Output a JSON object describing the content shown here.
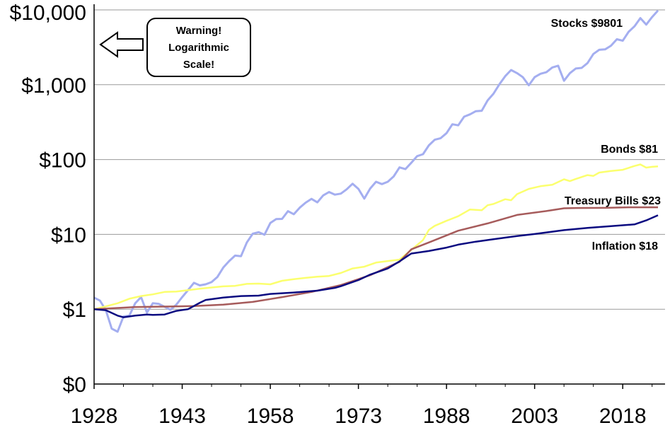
{
  "chart_data": {
    "type": "line",
    "title": "",
    "xlabel": "",
    "ylabel": "",
    "yscale": "log",
    "xlim": [
      1928,
      2024
    ],
    "ylim": [
      0.1,
      10000
    ],
    "grid": "horizontal",
    "legend": "none",
    "x_tick_labels": [
      "1928",
      "1943",
      "1958",
      "1973",
      "1988",
      "2003",
      "2018"
    ],
    "x_tick_values": [
      1928,
      1943,
      1958,
      1973,
      1988,
      2003,
      2018
    ],
    "y_tick_labels": [
      "$0",
      "$1",
      "$10",
      "$100",
      "$1,000",
      "$10,000"
    ],
    "y_tick_values": [
      0.1,
      1,
      10,
      100,
      1000,
      10000
    ],
    "colors": {
      "stocks": "#a4aef0",
      "bonds": "#fbff6e",
      "bills": "#a65b5b",
      "inflation": "#0a0a80",
      "grid": "#9a9a9a",
      "axis": "#000000"
    },
    "annotation": {
      "lines": [
        "Warning!",
        "Logarithmic",
        "Scale!"
      ]
    },
    "series": [
      {
        "key": "stocks",
        "label": "Stocks $9801",
        "points": [
          [
            1928,
            1.43
          ],
          [
            1929,
            1.3
          ],
          [
            1930,
            0.97
          ],
          [
            1931,
            0.55
          ],
          [
            1932,
            0.5
          ],
          [
            1933,
            0.8
          ],
          [
            1934,
            0.82
          ],
          [
            1935,
            1.2
          ],
          [
            1936,
            1.45
          ],
          [
            1937,
            0.9
          ],
          [
            1938,
            1.2
          ],
          [
            1939,
            1.18
          ],
          [
            1940,
            1.08
          ],
          [
            1941,
            0.98
          ],
          [
            1942,
            1.15
          ],
          [
            1943,
            1.45
          ],
          [
            1944,
            1.8
          ],
          [
            1945,
            2.25
          ],
          [
            1946,
            2.08
          ],
          [
            1947,
            2.15
          ],
          [
            1948,
            2.3
          ],
          [
            1949,
            2.7
          ],
          [
            1950,
            3.6
          ],
          [
            1951,
            4.4
          ],
          [
            1952,
            5.2
          ],
          [
            1953,
            5.1
          ],
          [
            1954,
            7.8
          ],
          [
            1955,
            10.2
          ],
          [
            1956,
            10.7
          ],
          [
            1957,
            9.9
          ],
          [
            1958,
            14.2
          ],
          [
            1959,
            16.0
          ],
          [
            1960,
            16.1
          ],
          [
            1961,
            20.4
          ],
          [
            1962,
            18.6
          ],
          [
            1963,
            22.7
          ],
          [
            1964,
            26.5
          ],
          [
            1965,
            29.8
          ],
          [
            1966,
            26.8
          ],
          [
            1967,
            33.2
          ],
          [
            1968,
            36.8
          ],
          [
            1969,
            34.0
          ],
          [
            1970,
            35.0
          ],
          [
            1971,
            40.0
          ],
          [
            1972,
            47.5
          ],
          [
            1973,
            40.5
          ],
          [
            1974,
            30.0
          ],
          [
            1975,
            41.0
          ],
          [
            1976,
            50.5
          ],
          [
            1977,
            47.0
          ],
          [
            1978,
            50.5
          ],
          [
            1979,
            59.5
          ],
          [
            1980,
            78.5
          ],
          [
            1981,
            74.5
          ],
          [
            1982,
            90.5
          ],
          [
            1983,
            111
          ],
          [
            1984,
            118
          ],
          [
            1985,
            155
          ],
          [
            1986,
            184
          ],
          [
            1987,
            193
          ],
          [
            1988,
            225
          ],
          [
            1989,
            296
          ],
          [
            1990,
            287
          ],
          [
            1991,
            374
          ],
          [
            1992,
            402
          ],
          [
            1993,
            443
          ],
          [
            1994,
            449
          ],
          [
            1995,
            617
          ],
          [
            1996,
            758
          ],
          [
            1997,
            1011
          ],
          [
            1998,
            1300
          ],
          [
            1999,
            1573
          ],
          [
            2000,
            1430
          ],
          [
            2001,
            1260
          ],
          [
            2002,
            982
          ],
          [
            2003,
            1263
          ],
          [
            2004,
            1400
          ],
          [
            2005,
            1469
          ],
          [
            2006,
            1700
          ],
          [
            2007,
            1794
          ],
          [
            2008,
            1130
          ],
          [
            2009,
            1429
          ],
          [
            2010,
            1645
          ],
          [
            2011,
            1679
          ],
          [
            2012,
            1948
          ],
          [
            2013,
            2578
          ],
          [
            2014,
            2931
          ],
          [
            2015,
            2971
          ],
          [
            2016,
            3327
          ],
          [
            2017,
            4053
          ],
          [
            2018,
            3875
          ],
          [
            2019,
            5095
          ],
          [
            2020,
            6032
          ],
          [
            2021,
            7764
          ],
          [
            2022,
            6358
          ],
          [
            2023,
            8029
          ],
          [
            2024,
            9801
          ]
        ]
      },
      {
        "key": "bonds",
        "label": "Bonds $81",
        "points": [
          [
            1928,
            1.0
          ],
          [
            1930,
            1.09
          ],
          [
            1932,
            1.2
          ],
          [
            1934,
            1.38
          ],
          [
            1936,
            1.5
          ],
          [
            1938,
            1.58
          ],
          [
            1940,
            1.7
          ],
          [
            1942,
            1.72
          ],
          [
            1944,
            1.8
          ],
          [
            1946,
            1.88
          ],
          [
            1948,
            1.95
          ],
          [
            1950,
            2.02
          ],
          [
            1952,
            2.05
          ],
          [
            1954,
            2.18
          ],
          [
            1956,
            2.2
          ],
          [
            1958,
            2.15
          ],
          [
            1960,
            2.4
          ],
          [
            1962,
            2.52
          ],
          [
            1964,
            2.62
          ],
          [
            1966,
            2.72
          ],
          [
            1968,
            2.78
          ],
          [
            1970,
            3.05
          ],
          [
            1972,
            3.5
          ],
          [
            1974,
            3.7
          ],
          [
            1976,
            4.2
          ],
          [
            1978,
            4.4
          ],
          [
            1980,
            4.6
          ],
          [
            1982,
            6.2
          ],
          [
            1984,
            8.4
          ],
          [
            1985,
            11.5
          ],
          [
            1986,
            13.0
          ],
          [
            1988,
            15.2
          ],
          [
            1990,
            17.5
          ],
          [
            1992,
            21.5
          ],
          [
            1994,
            21.0
          ],
          [
            1995,
            24.5
          ],
          [
            1996,
            25.5
          ],
          [
            1998,
            29.5
          ],
          [
            1999,
            28.6
          ],
          [
            2000,
            34.5
          ],
          [
            2002,
            40.5
          ],
          [
            2004,
            44.0
          ],
          [
            2006,
            46.0
          ],
          [
            2008,
            54.5
          ],
          [
            2009,
            51.5
          ],
          [
            2010,
            55.0
          ],
          [
            2012,
            62.0
          ],
          [
            2013,
            60.5
          ],
          [
            2014,
            67.0
          ],
          [
            2016,
            70.5
          ],
          [
            2018,
            73.0
          ],
          [
            2020,
            82.0
          ],
          [
            2021,
            86.0
          ],
          [
            2022,
            78.0
          ],
          [
            2023,
            80.0
          ],
          [
            2024,
            81.0
          ]
        ]
      },
      {
        "key": "bills",
        "label": "Treasury Bills $23",
        "points": [
          [
            1928,
            1.0
          ],
          [
            1935,
            1.07
          ],
          [
            1945,
            1.1
          ],
          [
            1950,
            1.15
          ],
          [
            1955,
            1.25
          ],
          [
            1960,
            1.45
          ],
          [
            1965,
            1.7
          ],
          [
            1970,
            2.1
          ],
          [
            1975,
            2.85
          ],
          [
            1980,
            4.3
          ],
          [
            1982,
            6.3
          ],
          [
            1985,
            7.8
          ],
          [
            1990,
            11.2
          ],
          [
            1995,
            14.0
          ],
          [
            2000,
            18.2
          ],
          [
            2005,
            20.5
          ],
          [
            2008,
            22.3
          ],
          [
            2010,
            22.5
          ],
          [
            2015,
            22.6
          ],
          [
            2019,
            23.0
          ],
          [
            2022,
            23.0
          ],
          [
            2024,
            23.0
          ]
        ]
      },
      {
        "key": "inflation",
        "label": "Inflation $18",
        "points": [
          [
            1928,
            1.0
          ],
          [
            1930,
            0.97
          ],
          [
            1932,
            0.82
          ],
          [
            1933,
            0.78
          ],
          [
            1935,
            0.82
          ],
          [
            1937,
            0.85
          ],
          [
            1938,
            0.84
          ],
          [
            1940,
            0.85
          ],
          [
            1942,
            0.95
          ],
          [
            1944,
            1.0
          ],
          [
            1946,
            1.22
          ],
          [
            1947,
            1.33
          ],
          [
            1950,
            1.43
          ],
          [
            1953,
            1.5
          ],
          [
            1956,
            1.52
          ],
          [
            1958,
            1.6
          ],
          [
            1962,
            1.67
          ],
          [
            1966,
            1.77
          ],
          [
            1969,
            1.93
          ],
          [
            1970,
            2.03
          ],
          [
            1973,
            2.45
          ],
          [
            1975,
            2.9
          ],
          [
            1978,
            3.5
          ],
          [
            1980,
            4.35
          ],
          [
            1982,
            5.55
          ],
          [
            1985,
            6.0
          ],
          [
            1988,
            6.65
          ],
          [
            1990,
            7.3
          ],
          [
            1993,
            8.0
          ],
          [
            1996,
            8.6
          ],
          [
            2000,
            9.5
          ],
          [
            2003,
            10.1
          ],
          [
            2008,
            11.4
          ],
          [
            2012,
            12.2
          ],
          [
            2016,
            12.9
          ],
          [
            2020,
            13.6
          ],
          [
            2022,
            15.4
          ],
          [
            2024,
            18.0
          ]
        ]
      }
    ]
  }
}
